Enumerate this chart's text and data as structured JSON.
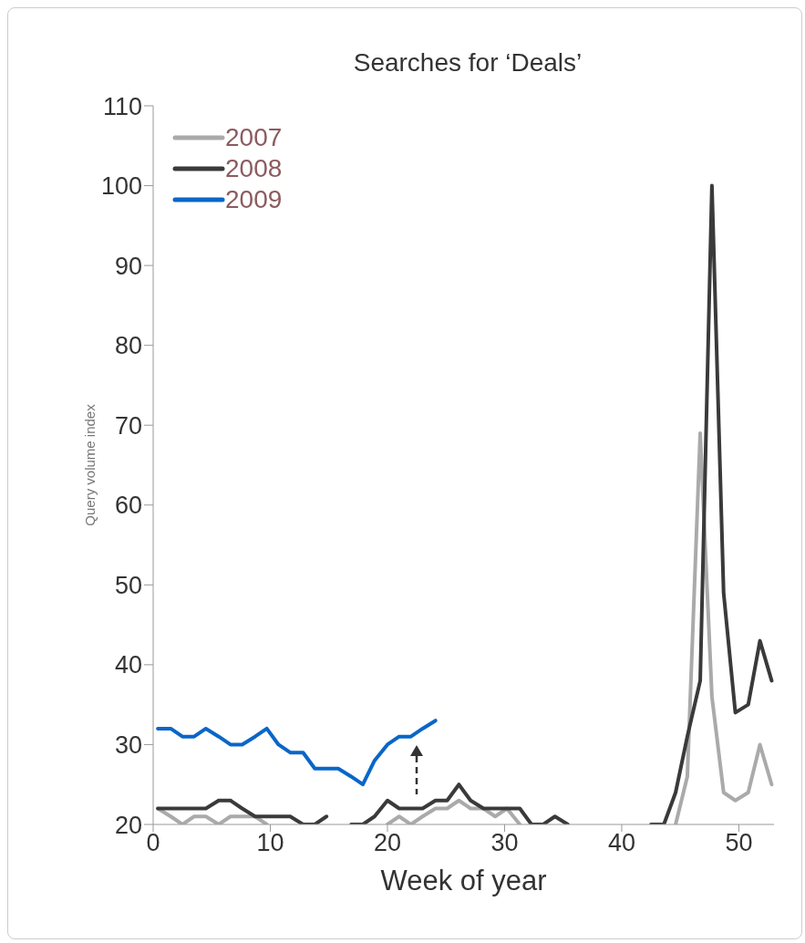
{
  "chart_data": {
    "type": "line",
    "title": "Searches for ‘Deals’",
    "xlabel": "Week of year",
    "ylabel": "Query volume index",
    "x": [
      0.4,
      1.5,
      2.5,
      3.5,
      4.5,
      5.6,
      6.6,
      7.6,
      8.7,
      9.7,
      10.7,
      11.7,
      12.8,
      13.8,
      14.8,
      15.8,
      16.9,
      17.9,
      18.9,
      20.0,
      21.0,
      22.0,
      23.0,
      24.1,
      25.1,
      26.1,
      27.1,
      28.2,
      29.2,
      30.2,
      31.3,
      32.3,
      33.3,
      34.3,
      35.4,
      36.4,
      37.4,
      38.4,
      39.5,
      40.5,
      41.5,
      42.5,
      43.6,
      44.6,
      45.6,
      46.7,
      47.7,
      48.7,
      49.7,
      50.8,
      51.8,
      52.8
    ],
    "series": [
      {
        "name": "2007",
        "color": "#aaaaaa",
        "values": [
          22,
          21,
          20,
          21,
          21,
          20,
          21,
          21,
          21,
          20,
          null,
          null,
          null,
          null,
          null,
          null,
          null,
          null,
          null,
          20,
          21,
          20,
          21,
          22,
          22,
          23,
          22,
          22,
          21,
          22,
          20,
          null,
          null,
          null,
          null,
          null,
          null,
          null,
          null,
          null,
          null,
          null,
          null,
          20,
          26,
          69,
          36,
          24,
          23,
          24,
          30,
          25
        ]
      },
      {
        "name": "2008",
        "color": "#3a3a3a",
        "values": [
          22,
          22,
          22,
          22,
          22,
          23,
          23,
          22,
          21,
          21,
          21,
          21,
          20,
          20,
          21,
          null,
          20,
          20,
          21,
          23,
          22,
          22,
          22,
          23,
          23,
          25,
          23,
          22,
          22,
          22,
          22,
          20,
          20,
          21,
          20,
          null,
          null,
          null,
          null,
          null,
          null,
          20,
          20,
          24,
          31,
          38,
          100,
          49,
          34,
          35,
          43,
          38
        ]
      },
      {
        "name": "2009",
        "color": "#0a66c8",
        "values": [
          32,
          32,
          31,
          31,
          32,
          31,
          30,
          30,
          31,
          32,
          30,
          29,
          29,
          27,
          27,
          27,
          26,
          25,
          28,
          30,
          31,
          31,
          32,
          33,
          null,
          null,
          null,
          null,
          null,
          null,
          null,
          null,
          null,
          null,
          null,
          null,
          null,
          null,
          null,
          null,
          null,
          null,
          null,
          null,
          null,
          null,
          null,
          null,
          null,
          null,
          null,
          null
        ]
      }
    ],
    "xlim": [
      0,
      53
    ],
    "xticks": [
      0,
      10,
      20,
      30,
      40,
      50
    ],
    "ylim": [
      20,
      110
    ],
    "yticks": [
      20,
      30,
      40,
      50,
      60,
      70,
      80,
      90,
      100,
      110
    ],
    "grid": false,
    "legend": "top left",
    "marker": "none",
    "line_style": "solid"
  }
}
